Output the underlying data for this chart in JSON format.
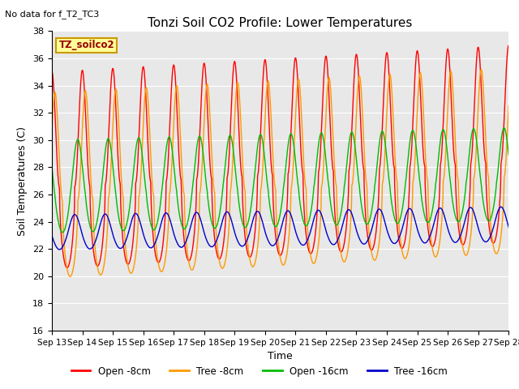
{
  "title": "Tonzi Soil CO2 Profile: Lower Temperatures",
  "top_left_note": "No data for f_T2_TC3",
  "ylabel": "Soil Temperatures (C)",
  "xlabel": "Time",
  "ylim": [
    16,
    38
  ],
  "yticks": [
    16,
    18,
    20,
    22,
    24,
    26,
    28,
    30,
    32,
    34,
    36,
    38
  ],
  "date_start": 13,
  "date_end": 28,
  "legend_label": "TZ_soilco2",
  "colors": {
    "Open -8cm": "#ff0000",
    "Tree -8cm": "#ff9900",
    "Open -16cm": "#00bb00",
    "Tree -16cm": "#0000cc"
  },
  "bg_color": "#e8e8e8",
  "fig_bg": "#ffffff",
  "grid_color": "#ffffff",
  "box_fill": "#ffff99",
  "box_edge": "#cc9900"
}
